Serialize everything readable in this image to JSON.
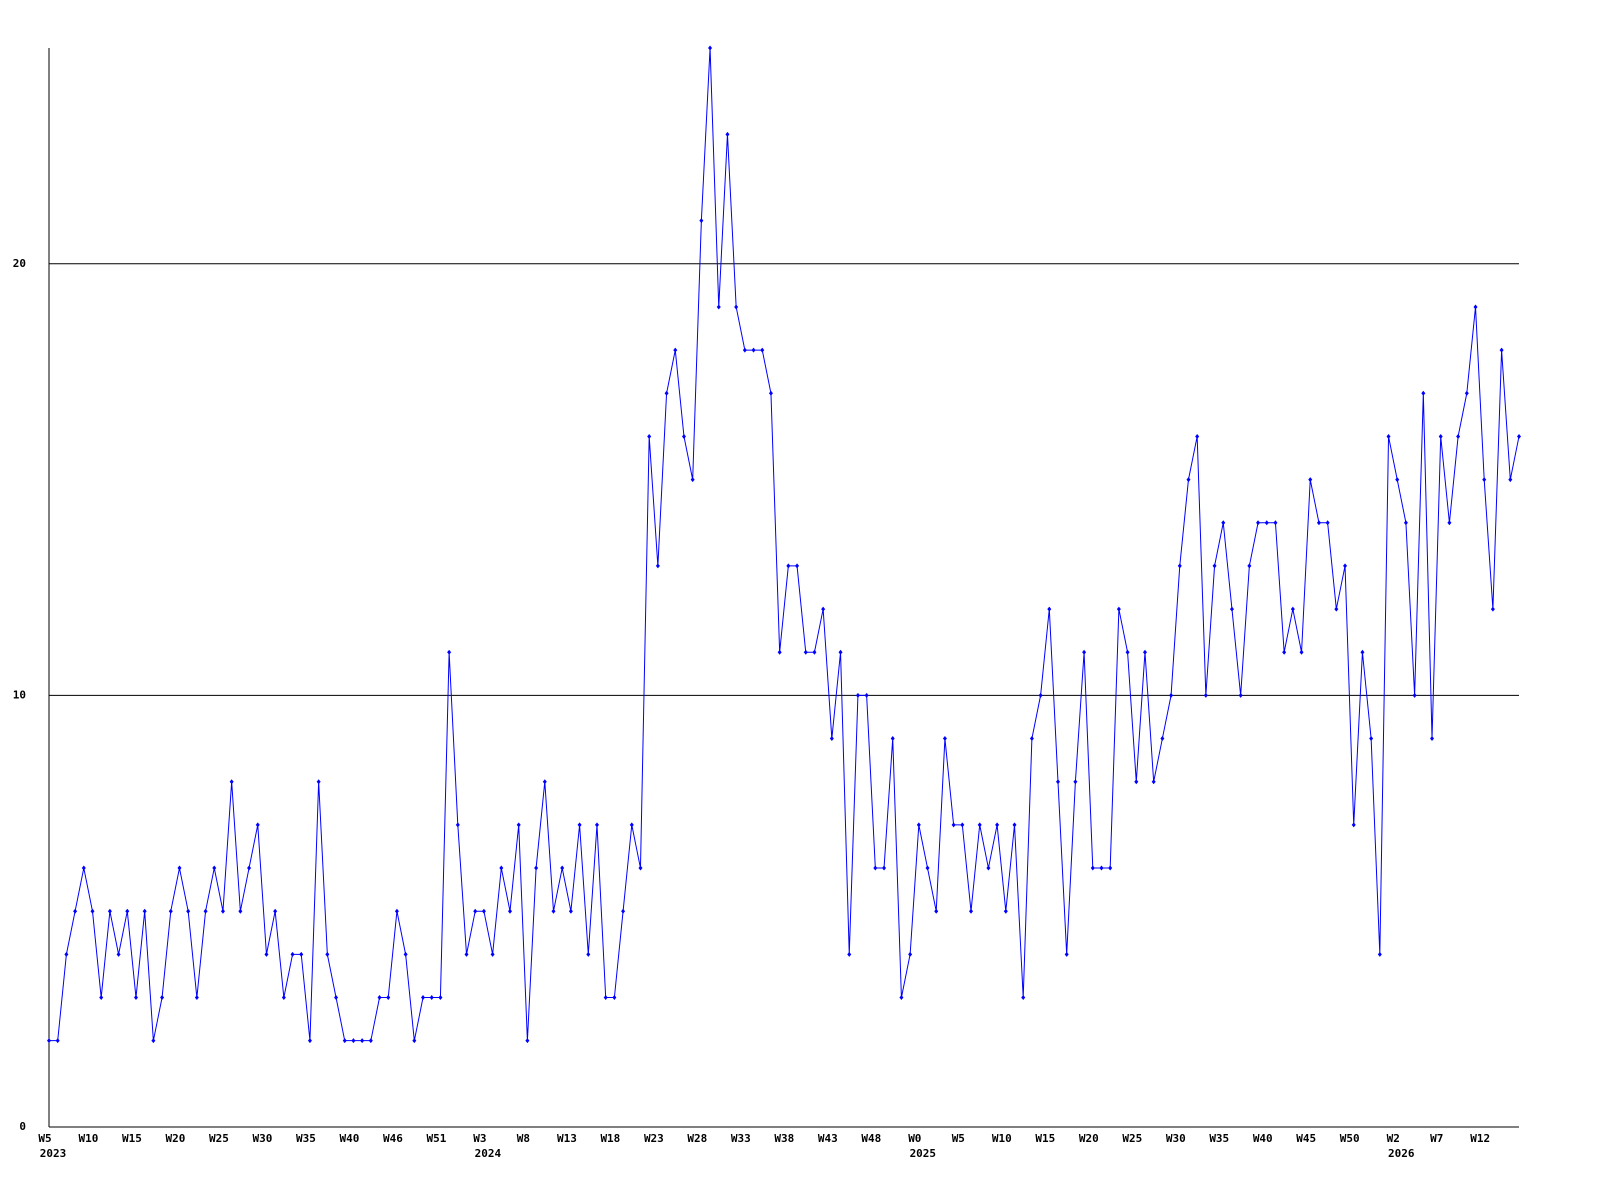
{
  "chart_data": {
    "type": "line",
    "categories": [
      "W5",
      null,
      null,
      null,
      null,
      "W10",
      null,
      null,
      null,
      null,
      "W15",
      null,
      null,
      null,
      null,
      "W20",
      null,
      null,
      null,
      null,
      "W25",
      null,
      null,
      null,
      null,
      "W30",
      null,
      null,
      null,
      null,
      "W35",
      null,
      null,
      null,
      null,
      "W40",
      null,
      null,
      null,
      null,
      "W46",
      null,
      null,
      null,
      null,
      "W51",
      null,
      null,
      null,
      null,
      "W3",
      null,
      null,
      null,
      null,
      "W8",
      null,
      null,
      null,
      null,
      "W13",
      null,
      null,
      null,
      null,
      "W18",
      null,
      null,
      null,
      null,
      "W23",
      null,
      null,
      null,
      null,
      "W28",
      null,
      null,
      null,
      null,
      "W33",
      null,
      null,
      null,
      null,
      "W38",
      null,
      null,
      null,
      null,
      "W43",
      null,
      null,
      null,
      null,
      "W48",
      null,
      null,
      null,
      null,
      "W0",
      null,
      null,
      null,
      null,
      "W5",
      null,
      null,
      null,
      null,
      "W10",
      null,
      null,
      null,
      null,
      "W15",
      null,
      null,
      null,
      null,
      "W20",
      null,
      null,
      null,
      null,
      "W25",
      null,
      null,
      null,
      null,
      "W30",
      null,
      null,
      null,
      null,
      "W35",
      null,
      null,
      null,
      null,
      "W40",
      null,
      null,
      null,
      null,
      "W45",
      null,
      null,
      null,
      null,
      "W50",
      null,
      null,
      null,
      null,
      "W2",
      null,
      null,
      null,
      null,
      "W7",
      null,
      null,
      null,
      null,
      "W12",
      null,
      null,
      null,
      null
    ],
    "category_groups": [
      "2023",
      null,
      null,
      null,
      null,
      null,
      null,
      null,
      null,
      null,
      null,
      null,
      null,
      null,
      null,
      null,
      null,
      null,
      null,
      null,
      null,
      null,
      null,
      null,
      null,
      null,
      null,
      null,
      null,
      null,
      null,
      null,
      null,
      null,
      null,
      null,
      null,
      null,
      null,
      null,
      null,
      null,
      null,
      null,
      null,
      null,
      null,
      null,
      null,
      null,
      "2024",
      null,
      null,
      null,
      null,
      null,
      null,
      null,
      null,
      null,
      null,
      null,
      null,
      null,
      null,
      null,
      null,
      null,
      null,
      null,
      null,
      null,
      null,
      null,
      null,
      null,
      null,
      null,
      null,
      null,
      null,
      null,
      null,
      null,
      null,
      null,
      null,
      null,
      null,
      null,
      null,
      null,
      null,
      null,
      null,
      null,
      null,
      null,
      null,
      null,
      "2025",
      null,
      null,
      null,
      null,
      null,
      null,
      null,
      null,
      null,
      null,
      null,
      null,
      null,
      null,
      null,
      null,
      null,
      null,
      null,
      null,
      null,
      null,
      null,
      null,
      null,
      null,
      null,
      null,
      null,
      null,
      null,
      null,
      null,
      null,
      null,
      null,
      null,
      null,
      null,
      null,
      null,
      null,
      null,
      null,
      null,
      null,
      null,
      null,
      null,
      null,
      null,
      null,
      null,
      null,
      "2026",
      null,
      null,
      null,
      null,
      null,
      null,
      null,
      null,
      null,
      null,
      null,
      null,
      null,
      null
    ],
    "series": [
      {
        "color": "#0000ff",
        "values": [
          2,
          2,
          4,
          5,
          6,
          5,
          3,
          5,
          4,
          5,
          3,
          5,
          2,
          3,
          5,
          6,
          5,
          3,
          5,
          6,
          5,
          8,
          5,
          6,
          7,
          4,
          5,
          3,
          4,
          4,
          2,
          8,
          4,
          3,
          2,
          2,
          2,
          2,
          3,
          3,
          5,
          4,
          2,
          3,
          3,
          3,
          11,
          7,
          4,
          5,
          5,
          4,
          6,
          5,
          7,
          2,
          6,
          8,
          5,
          6,
          5,
          7,
          4,
          7,
          3,
          3,
          5,
          7,
          6,
          16,
          13,
          17,
          18,
          16,
          15,
          21,
          25,
          19,
          23,
          19,
          18,
          18,
          18,
          17,
          11,
          13,
          13,
          11,
          11,
          12,
          9,
          11,
          4,
          10,
          10,
          6,
          6,
          9,
          3,
          4,
          7,
          6,
          5,
          9,
          7,
          7,
          5,
          7,
          6,
          7,
          5,
          7,
          3,
          9,
          10,
          12,
          8,
          4,
          8,
          11,
          6,
          6,
          6,
          12,
          11,
          8,
          11,
          8,
          9,
          10,
          13,
          15,
          16,
          10,
          13,
          14,
          12,
          10,
          13,
          14,
          14,
          14,
          11,
          12,
          11,
          15,
          14,
          14,
          12,
          13,
          7,
          11,
          9,
          4,
          16,
          15,
          14,
          10,
          17,
          9,
          16,
          14,
          16,
          17,
          19,
          15,
          12,
          18,
          15,
          16
        ]
      }
    ],
    "ylim": [
      0,
      25
    ],
    "yticks": [
      0,
      10,
      20
    ],
    "grid": true
  }
}
